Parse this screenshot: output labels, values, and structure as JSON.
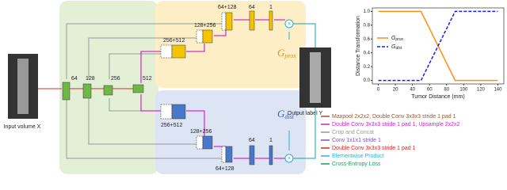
{
  "diagram": {
    "input_label": "Input volume X",
    "output_label": "Output label Y",
    "encoder": [
      "64",
      "128",
      "256",
      "512"
    ],
    "prox_decoder": [
      "256+512",
      "128+256",
      "64+128",
      "64",
      "1"
    ],
    "dist_decoder": [
      "256+512",
      "128+256",
      "64+128",
      "64",
      "1"
    ],
    "g_prox": {
      "symbol": "G",
      "subscript": "prox"
    },
    "g_dist": {
      "symbol": "G",
      "subscript": "dist"
    },
    "legend": [
      "Maxpool 2x2x2, Double Conv 3x3x3 stride 1 pad 1",
      "Double Conv 3x3x3 stride 1 pad 1, Upsample 2x2x2",
      "Crop and Concat",
      "Conv 1x1x1 stride 1",
      "Double Conv 3x3x3 stride 1 pad 1",
      "Elementwise Product",
      "Cross-Entropy Loss"
    ]
  },
  "chart_data": {
    "type": "line",
    "x_label": "Tumor Distance (mm)",
    "y_label": "Distance Transformation",
    "x": [
      0,
      50,
      90,
      140
    ],
    "series": [
      {
        "name": {
          "symbol": "G",
          "subscript": "prox"
        },
        "color": "#ff8c1a",
        "dash": false,
        "values": [
          1,
          1,
          0,
          0
        ]
      },
      {
        "name": {
          "symbol": "G",
          "subscript": "dist"
        },
        "color": "#1a1aff",
        "dash": true,
        "values": [
          0,
          0,
          1,
          1
        ]
      }
    ],
    "xlim": [
      -7,
      147
    ],
    "ylim": [
      -0.05,
      1.05
    ],
    "xticks": [
      0,
      20,
      40,
      60,
      80,
      100,
      120,
      140
    ],
    "yticks": [
      {
        "value": 0,
        "label": "0.0"
      },
      {
        "value": 0.2,
        "label": "0.2"
      },
      {
        "value": 0.4,
        "label": "0.4"
      },
      {
        "value": 0.6,
        "label": "0.6"
      },
      {
        "value": 0.8,
        "label": "0.8"
      },
      {
        "value": 1,
        "label": "1.0"
      }
    ],
    "legend_position": "center left"
  }
}
